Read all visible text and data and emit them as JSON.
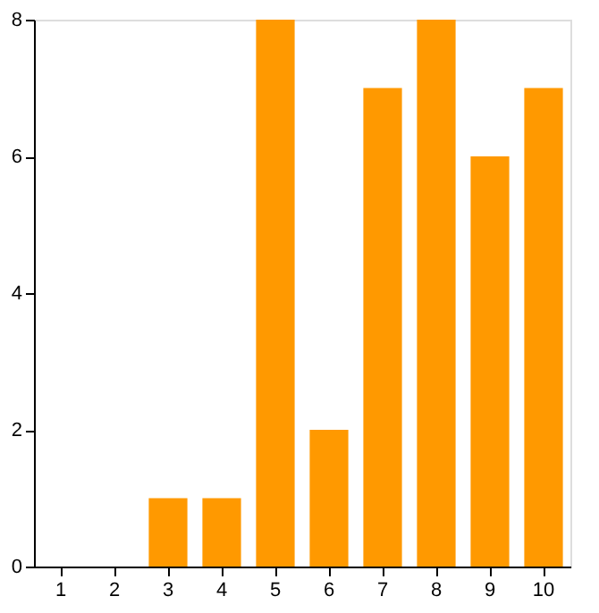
{
  "chart_data": {
    "type": "bar",
    "categories": [
      "1",
      "2",
      "3",
      "4",
      "5",
      "6",
      "7",
      "8",
      "9",
      "10"
    ],
    "values": [
      0,
      0,
      1,
      1,
      8,
      2,
      7,
      8,
      6,
      7
    ],
    "color": "#ff9900",
    "ylim": [
      0,
      8
    ],
    "yticks": [
      0,
      2,
      4,
      6,
      8
    ],
    "grid": false
  }
}
